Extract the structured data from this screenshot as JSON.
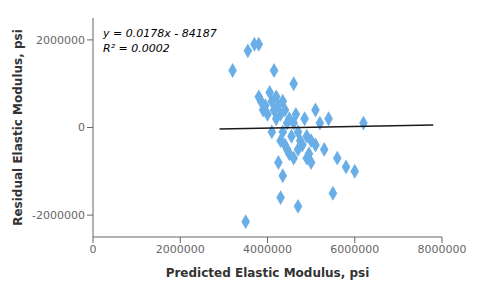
{
  "chart_data": {
    "type": "scatter",
    "xlabel": "Predicted Elastic Modulus, psi",
    "ylabel": "Residual Elastic Modulus, psi",
    "xlim": [
      0,
      8000000
    ],
    "ylim": [
      -2500000,
      2500000
    ],
    "xticks": [
      0,
      2000000,
      4000000,
      6000000,
      8000000
    ],
    "yticks": [
      -2000000,
      0,
      2000000
    ],
    "grid": false,
    "annotations": [
      "y = 0.0178x - 84187",
      "R² = 0.0002"
    ],
    "series": [
      {
        "type": "scatter",
        "marker": "diamond",
        "color": "#6aaee8",
        "x": [
          3200000,
          3500000,
          3550000,
          3700000,
          3800000,
          3850000,
          3900000,
          3950000,
          4000000,
          4050000,
          4100000,
          4100000,
          4150000,
          4200000,
          4200000,
          4250000,
          4300000,
          4300000,
          4350000,
          4350000,
          4400000,
          4400000,
          4450000,
          4450000,
          4500000,
          4500000,
          4550000,
          4600000,
          4600000,
          4650000,
          4700000,
          4700000,
          4750000,
          4800000,
          4850000,
          4900000,
          4900000,
          4950000,
          5000000,
          5000000,
          5100000,
          5100000,
          5200000,
          5300000,
          5400000,
          5500000,
          5600000,
          5800000,
          6000000,
          6200000,
          3800000,
          4150000,
          4250000,
          4350000,
          4600000,
          4700000,
          4300000
        ],
        "values": [
          1300000,
          -2150000,
          1750000,
          1900000,
          700000,
          600000,
          400000,
          500000,
          300000,
          800000,
          600000,
          -100000,
          400000,
          700000,
          200000,
          500000,
          300000,
          -300000,
          600000,
          -100000,
          400000,
          -400000,
          100000,
          -500000,
          200000,
          -600000,
          -200000,
          100000,
          -700000,
          300000,
          -100000,
          -500000,
          -300000,
          -400000,
          200000,
          -200000,
          -700000,
          -600000,
          -300000,
          -800000,
          400000,
          -400000,
          100000,
          -500000,
          200000,
          -1500000,
          -700000,
          -900000,
          -1000000,
          100000,
          1900000,
          1300000,
          -800000,
          -1100000,
          1000000,
          -1800000,
          -1600000
        ]
      },
      {
        "type": "line",
        "line_style": "solid",
        "color": "#1a1a1a",
        "x": [
          2900000,
          7800000
        ],
        "values": [
          -32567,
          54653
        ]
      }
    ]
  }
}
